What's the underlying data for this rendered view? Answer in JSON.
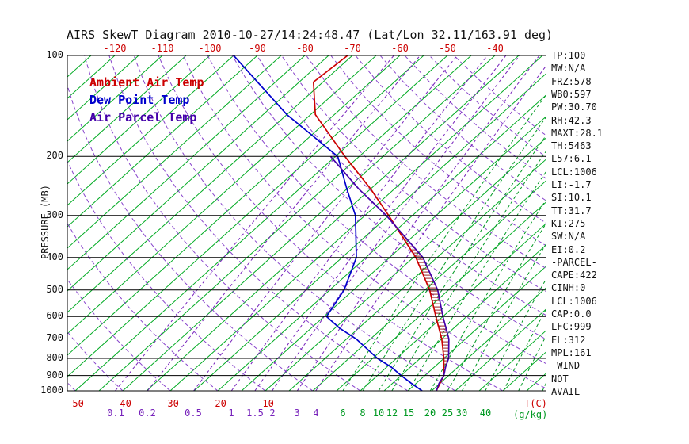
{
  "title": "AIRS SkewT Diagram 2010-10-27/14:24:48.47 (Lat/Lon 32.11/163.91 deg)",
  "colors": {
    "ambient": "#cc0000",
    "dewpoint": "#0000cc",
    "parcel": "#4400aa",
    "isotherm": "#00aa22",
    "mix_green": "#009922",
    "mix_purple": "#7722bb",
    "adiabat": "#8844cc",
    "isobar": "#000000",
    "hatch": "#992222",
    "text": "#111111"
  },
  "legend": {
    "items": [
      {
        "label": "Ambient Air Temp",
        "color": "#cc0000"
      },
      {
        "label": "Dew Point Temp",
        "color": "#0000cc"
      },
      {
        "label": "Air Parcel Temp",
        "color": "#4400aa"
      }
    ]
  },
  "pressure_axis": {
    "label": "PRESSURE (MB)",
    "ticks": [
      100,
      200,
      300,
      400,
      500,
      600,
      700,
      800,
      900,
      1000
    ]
  },
  "top_axis": {
    "ticks": [
      -120,
      -110,
      -100,
      -90,
      -80,
      -70,
      -60,
      -50,
      -40
    ]
  },
  "bottom_axis": {
    "temp_ticks": [
      -50,
      -40,
      -30,
      -20,
      -10
    ],
    "temp_unit": "T(C)",
    "mix_unit": "(g/kg)",
    "mix_ticks": [
      {
        "v": "0.1",
        "c": "purple"
      },
      {
        "v": "0.2",
        "c": "purple"
      },
      {
        "v": "0.5",
        "c": "purple"
      },
      {
        "v": "1",
        "c": "purple"
      },
      {
        "v": "1.5",
        "c": "purple"
      },
      {
        "v": "2",
        "c": "purple"
      },
      {
        "v": "3",
        "c": "purple"
      },
      {
        "v": "4",
        "c": "purple"
      },
      {
        "v": "6",
        "c": "green"
      },
      {
        "v": "8",
        "c": "green"
      },
      {
        "v": "10",
        "c": "green"
      },
      {
        "v": "12",
        "c": "green"
      },
      {
        "v": "15",
        "c": "green"
      },
      {
        "v": "20",
        "c": "green"
      },
      {
        "v": "25",
        "c": "green"
      },
      {
        "v": "30",
        "c": "green"
      },
      {
        "v": "40",
        "c": "green"
      }
    ]
  },
  "side_panel": {
    "lines": [
      "TP:100",
      "MW:N/A",
      "FRZ:578",
      "WB0:597",
      "PW:30.70",
      "RH:42.3",
      "MAXT:28.1",
      "TH:5463",
      "L57:6.1",
      "LCL:1006",
      "LI:-1.7",
      "SI:10.1",
      "TT:31.7",
      "KI:275",
      "SW:N/A",
      "EI:0.2",
      "-PARCEL-",
      "CAPE:422",
      "CINH:0",
      "LCL:1006",
      "CAP:0.0",
      "LFC:999",
      "EL:312",
      "MPL:161",
      "-WIND-",
      "NOT",
      "AVAIL"
    ]
  },
  "chart_data": {
    "type": "line",
    "subtype": "skew-t log-p sounding",
    "title": "AIRS SkewT Diagram 2010-10-27/14:24:48.47 (Lat/Lon 32.11/163.91 deg)",
    "y_axis": {
      "label": "PRESSURE (MB)",
      "scale": "log",
      "range": [
        100,
        1000
      ],
      "ticks": [
        100,
        200,
        300,
        400,
        500,
        600,
        700,
        800,
        900,
        1000
      ]
    },
    "x_axis": {
      "label": "T(C)",
      "top_tick_labels_c": [
        -120,
        -110,
        -100,
        -90,
        -80,
        -70,
        -60,
        -50,
        -40
      ],
      "bottom_tick_labels_c": [
        -50,
        -40,
        -30,
        -20,
        -10
      ],
      "isotherm_step_c": 5,
      "isotherm_range_c": [
        -145,
        50
      ]
    },
    "mixing_ratio_g_per_kg": {
      "labeled": [
        0.1,
        0.2,
        0.5,
        1,
        1.5,
        2,
        3,
        4,
        6,
        8,
        10,
        12,
        15,
        20,
        25,
        30,
        40
      ],
      "unlabeled": [
        50,
        60,
        80
      ]
    },
    "dry_adiabats_theta_c": [
      -50,
      -40,
      -30,
      -20,
      -10,
      0,
      10,
      20,
      30,
      40,
      50,
      60,
      70,
      80,
      90,
      100,
      110,
      120,
      130,
      140,
      150,
      160
    ],
    "series": [
      {
        "name": "Ambient Air Temp",
        "color": "#cc0000",
        "points_p_mb_t_c": [
          [
            1000,
            26
          ],
          [
            950,
            25
          ],
          [
            900,
            24
          ],
          [
            850,
            22
          ],
          [
            800,
            20
          ],
          [
            700,
            15
          ],
          [
            600,
            8.5
          ],
          [
            500,
            1
          ],
          [
            400,
            -9.5
          ],
          [
            300,
            -25
          ],
          [
            250,
            -35
          ],
          [
            200,
            -48
          ],
          [
            150,
            -64
          ],
          [
            120,
            -72
          ],
          [
            100,
            -71
          ]
        ]
      },
      {
        "name": "Dew Point Temp",
        "color": "#0000cc",
        "points_p_mb_t_c": [
          [
            1000,
            23
          ],
          [
            950,
            19
          ],
          [
            900,
            15
          ],
          [
            850,
            11
          ],
          [
            800,
            6
          ],
          [
            700,
            -3
          ],
          [
            650,
            -9
          ],
          [
            600,
            -14.5
          ],
          [
            500,
            -17
          ],
          [
            400,
            -22
          ],
          [
            300,
            -32
          ],
          [
            250,
            -40
          ],
          [
            200,
            -49.5
          ],
          [
            150,
            -70
          ],
          [
            100,
            -95
          ]
        ]
      },
      {
        "name": "Air Parcel Temp",
        "color": "#4400aa",
        "points_p_mb_t_c": [
          [
            1000,
            26
          ],
          [
            950,
            24.8
          ],
          [
            900,
            24
          ],
          [
            850,
            22.4
          ],
          [
            800,
            21
          ],
          [
            700,
            16.5
          ],
          [
            600,
            10
          ],
          [
            500,
            2.7
          ],
          [
            400,
            -8
          ],
          [
            300,
            -25.5
          ],
          [
            250,
            -37.5
          ],
          [
            200,
            -51
          ]
        ]
      }
    ],
    "cape_hatch_pressure_range_mb": [
      850,
      312
    ]
  }
}
